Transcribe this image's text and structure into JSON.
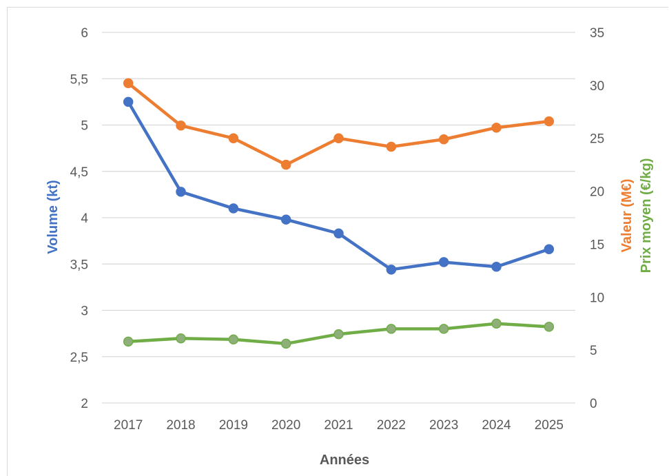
{
  "chart_data": {
    "type": "line",
    "categories": [
      "2017",
      "2018",
      "2019",
      "2020",
      "2021",
      "2022",
      "2023",
      "2024",
      "2025"
    ],
    "xlabel": "Années",
    "left_axis": {
      "label": "Volume (kt)",
      "label_color": "#4472c4",
      "ylim": [
        2,
        6
      ],
      "ticks": [
        "2",
        "2,5",
        "3",
        "3,5",
        "4",
        "4,5",
        "5",
        "5,5",
        "6"
      ],
      "tick_values": [
        2,
        2.5,
        3,
        3.5,
        4,
        4.5,
        5,
        5.5,
        6
      ]
    },
    "right_axis": {
      "labels": [
        {
          "text": "Valeur (M€)",
          "color": "#ed7d31"
        },
        {
          "text": "Prix moyen (€/kg)",
          "color": "#70ad47"
        }
      ],
      "ylim": [
        0,
        35
      ],
      "ticks": [
        "0",
        "5",
        "10",
        "15",
        "20",
        "25",
        "30",
        "35"
      ],
      "tick_values": [
        0,
        5,
        10,
        15,
        20,
        25,
        30,
        35
      ]
    },
    "grid": true,
    "series": [
      {
        "key": "volume",
        "axis": "left",
        "color": "#4472c4",
        "marker_fill": "#4472c4",
        "values": [
          5.25,
          4.28,
          4.1,
          3.98,
          3.83,
          3.44,
          3.52,
          3.47,
          3.66
        ]
      },
      {
        "key": "valeur",
        "axis": "right",
        "color": "#ed7d31",
        "marker_fill": "#ed7d31",
        "values": [
          30.2,
          26.2,
          25.0,
          22.5,
          25.0,
          24.2,
          24.9,
          26.0,
          26.6
        ]
      },
      {
        "key": "prix",
        "axis": "right",
        "color": "#70ad47",
        "marker_fill": "#8faf7a",
        "values": [
          5.8,
          6.1,
          6.0,
          5.6,
          6.5,
          7.0,
          7.0,
          7.5,
          7.2
        ]
      }
    ]
  }
}
